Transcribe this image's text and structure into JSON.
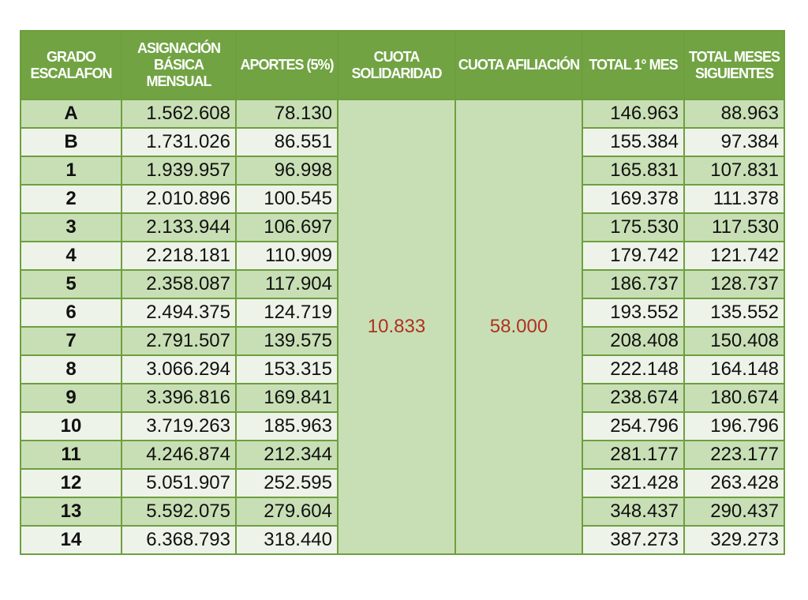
{
  "headers": {
    "grade": "GRADO ESCALAFON",
    "basic": "ASIGNACIÓN BÁSICA MENSUAL",
    "contrib": "APORTES (5%)",
    "solid": "CUOTA SOLIDARIDAD",
    "affil": "CUOTA AFILIACIÓN",
    "first": "TOTAL 1° MES",
    "next": "TOTAL MESES SIGUIENTES"
  },
  "cuota_solidaridad": "10.833",
  "cuota_afiliacion": "58.000",
  "rows": [
    {
      "grade": "A",
      "basic": "1.562.608",
      "contrib": "78.130",
      "first": "146.963",
      "next": "88.963"
    },
    {
      "grade": "B",
      "basic": "1.731.026",
      "contrib": "86.551",
      "first": "155.384",
      "next": "97.384"
    },
    {
      "grade": "1",
      "basic": "1.939.957",
      "contrib": "96.998",
      "first": "165.831",
      "next": "107.831"
    },
    {
      "grade": "2",
      "basic": "2.010.896",
      "contrib": "100.545",
      "first": "169.378",
      "next": "111.378"
    },
    {
      "grade": "3",
      "basic": "2.133.944",
      "contrib": "106.697",
      "first": "175.530",
      "next": "117.530"
    },
    {
      "grade": "4",
      "basic": "2.218.181",
      "contrib": "110.909",
      "first": "179.742",
      "next": "121.742"
    },
    {
      "grade": "5",
      "basic": "2.358.087",
      "contrib": "117.904",
      "first": "186.737",
      "next": "128.737"
    },
    {
      "grade": "6",
      "basic": "2.494.375",
      "contrib": "124.719",
      "first": "193.552",
      "next": "135.552"
    },
    {
      "grade": "7",
      "basic": "2.791.507",
      "contrib": "139.575",
      "first": "208.408",
      "next": "150.408"
    },
    {
      "grade": "8",
      "basic": "3.066.294",
      "contrib": "153.315",
      "first": "222.148",
      "next": "164.148"
    },
    {
      "grade": "9",
      "basic": "3.396.816",
      "contrib": "169.841",
      "first": "238.674",
      "next": "180.674"
    },
    {
      "grade": "10",
      "basic": "3.719.263",
      "contrib": "185.963",
      "first": "254.796",
      "next": "196.796"
    },
    {
      "grade": "11",
      "basic": "4.246.874",
      "contrib": "212.344",
      "first": "281.177",
      "next": "223.177"
    },
    {
      "grade": "12",
      "basic": "5.051.907",
      "contrib": "252.595",
      "first": "321.428",
      "next": "263.428"
    },
    {
      "grade": "13",
      "basic": "5.592.075",
      "contrib": "279.604",
      "first": "348.437",
      "next": "290.437"
    },
    {
      "grade": "14",
      "basic": "6.368.793",
      "contrib": "318.440",
      "first": "387.273",
      "next": "329.273"
    }
  ]
}
